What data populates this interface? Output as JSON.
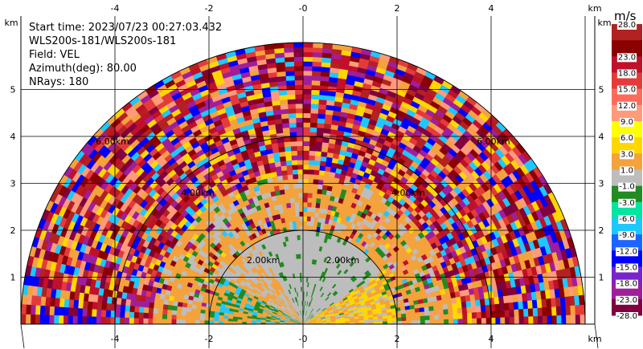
{
  "info": {
    "start_time": "Start time: 2023/07/23 00:27:03.432",
    "instrument": "WLS200s-181/WLS200s-181",
    "field": "Field: VEL",
    "azimuth": "Azimuth(deg): 80.00",
    "nrays": "NRays: 180"
  },
  "chart_data": {
    "type": "heatmap",
    "subtype": "rhi_semicircle",
    "x_unit": "km",
    "y_unit": "km",
    "xlim": [
      -6,
      6
    ],
    "ylim": [
      0,
      6
    ],
    "x_ticks": [
      "-4",
      "-2",
      "-0",
      "2",
      "4"
    ],
    "y_ticks": [
      "1",
      "2",
      "3",
      "4",
      "5"
    ],
    "max_range_km": 6,
    "range_rings": [
      "2.00km",
      "4.00km",
      "6.00km"
    ],
    "grid": true,
    "colorbar": {
      "unit": "m/s",
      "levels": [
        "28.0",
        "23.0",
        "18.0",
        "15.0",
        "12.0",
        "9.0",
        "6.0",
        "3.0",
        "1.0",
        "-1.0",
        "-3.0",
        "-6.0",
        "-9.0",
        "-12.0",
        "-15.0",
        "-18.0",
        "-23.0",
        "-28.0"
      ],
      "colors": [
        "#b22222",
        "#8b0000",
        "#c0102a",
        "#e53a3a",
        "#ff6a5a",
        "#ff9a7a",
        "#ffff00",
        "#ffd700",
        "#f4a23c",
        "#bdbdbd",
        "#228b22",
        "#00e5a0",
        "#1ec8ff",
        "#1e64ff",
        "#0000ff",
        "#7a22cc",
        "#a01e9a",
        "#800040"
      ]
    },
    "regions": [
      {
        "range_km": [
          0,
          2
        ],
        "values": [
          0,
          0,
          0,
          0,
          -1.5,
          2
        ]
      },
      {
        "range_km": [
          2,
          3.2
        ],
        "values": [
          2,
          2,
          0,
          2,
          3,
          2,
          -2
        ]
      },
      {
        "range_km": [
          3.2,
          6
        ],
        "values": [
          20,
          -25,
          10,
          25,
          -15,
          5,
          -8,
          15,
          28,
          -20
        ]
      }
    ]
  }
}
